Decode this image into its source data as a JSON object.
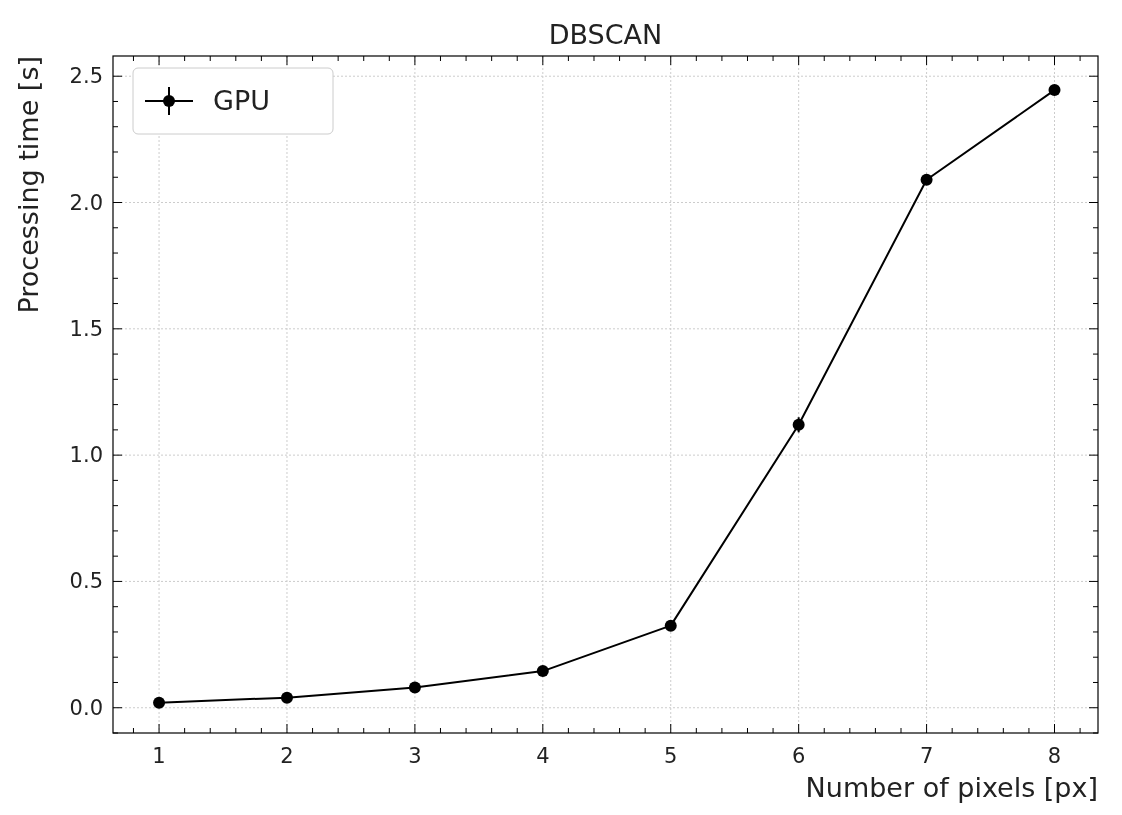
{
  "chart_data": {
    "type": "line",
    "title": "DBSCAN",
    "xlabel": "Number of pixels [px]",
    "ylabel": "Processing time [s]",
    "x": [
      1,
      2,
      3,
      4,
      5,
      6,
      7,
      8
    ],
    "series": [
      {
        "name": "GPU",
        "color": "#000000",
        "values": [
          0.02,
          0.04,
          0.08,
          0.145,
          0.325,
          1.12,
          2.09,
          2.445
        ],
        "errors": [
          null,
          null,
          null,
          null,
          null,
          0.03,
          null,
          null
        ]
      }
    ],
    "xlim": [
      0.64,
      8.34
    ],
    "ylim": [
      -0.1,
      2.58
    ],
    "xticks": [
      1,
      2,
      3,
      4,
      5,
      6,
      7,
      8,
      {
        "value": 0.8,
        "label": null
      },
      {
        "value": 1.2,
        "label": null
      },
      {
        "value": 1.4,
        "label": null
      },
      {
        "value": 1.6,
        "label": null
      },
      {
        "value": 1.8,
        "label": null
      },
      {
        "value": 2.2,
        "label": null
      },
      {
        "value": 2.4,
        "label": null
      },
      {
        "value": 2.6,
        "label": null
      },
      {
        "value": 2.8,
        "label": null
      },
      {
        "value": 3.2,
        "label": null
      },
      {
        "value": 3.4,
        "label": null
      },
      {
        "value": 3.6,
        "label": null
      },
      {
        "value": 3.8,
        "label": null
      },
      {
        "value": 4.2,
        "label": null
      },
      {
        "value": 4.4,
        "label": null
      },
      {
        "value": 4.6,
        "label": null
      },
      {
        "value": 4.8,
        "label": null
      },
      {
        "value": 5.2,
        "label": null
      },
      {
        "value": 5.4,
        "label": null
      },
      {
        "value": 5.6,
        "label": null
      },
      {
        "value": 5.8,
        "label": null
      },
      {
        "value": 6.2,
        "label": null
      },
      {
        "value": 6.4,
        "label": null
      },
      {
        "value": 6.6,
        "label": null
      },
      {
        "value": 6.8,
        "label": null
      },
      {
        "value": 7.2,
        "label": null
      },
      {
        "value": 7.4,
        "label": null
      },
      {
        "value": 7.6,
        "label": null
      },
      {
        "value": 7.8,
        "label": null
      },
      {
        "value": 8.2,
        "label": null
      }
    ],
    "yticks": [
      {
        "value": 0,
        "label": "0.0"
      },
      {
        "value": 0.5,
        "label": "0.5"
      },
      {
        "value": 1,
        "label": "1.0"
      },
      {
        "value": 1.5,
        "label": "1.5"
      },
      {
        "value": 2,
        "label": "2.0"
      },
      {
        "value": 2.5,
        "label": "2.5"
      },
      {
        "value": 0.1,
        "label": null
      },
      {
        "value": 0.2,
        "label": null
      },
      {
        "value": 0.3,
        "label": null
      },
      {
        "value": 0.4,
        "label": null
      },
      {
        "value": 0.6,
        "label": null
      },
      {
        "value": 0.7,
        "label": null
      },
      {
        "value": 0.8,
        "label": null
      },
      {
        "value": 0.9,
        "label": null
      },
      {
        "value": 1.1,
        "label": null
      },
      {
        "value": 1.2,
        "label": null
      },
      {
        "value": 1.3,
        "label": null
      },
      {
        "value": 1.4,
        "label": null
      },
      {
        "value": 1.6,
        "label": null
      },
      {
        "value": 1.7,
        "label": null
      },
      {
        "value": 1.8,
        "label": null
      },
      {
        "value": 1.9,
        "label": null
      },
      {
        "value": 2.1,
        "label": null
      },
      {
        "value": 2.2,
        "label": null
      },
      {
        "value": 2.3,
        "label": null
      },
      {
        "value": 2.4,
        "label": null
      },
      {
        "value": -0.1,
        "label": null
      }
    ],
    "grid": true,
    "legend": "top left",
    "marker": "circle",
    "line_style": "solid"
  }
}
